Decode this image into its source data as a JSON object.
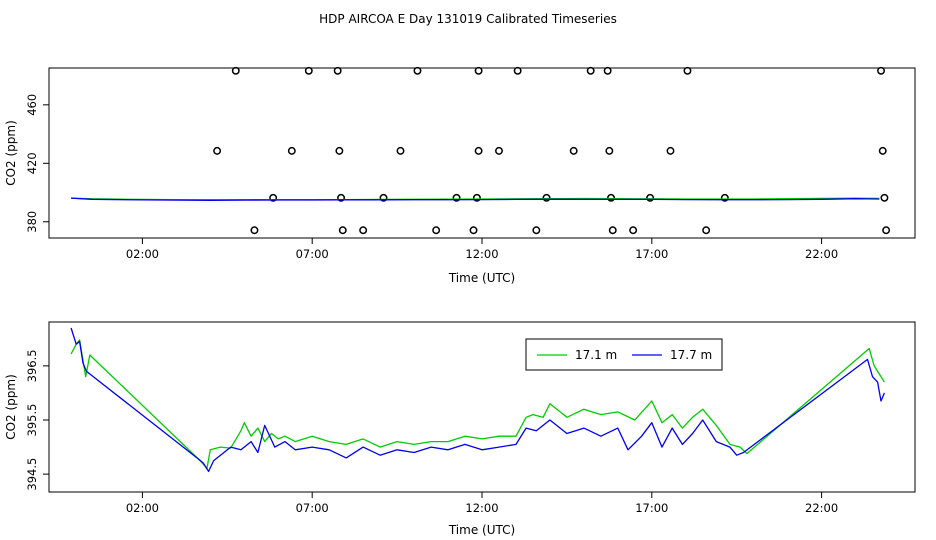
{
  "title": "HDP AIRCOA E  Day 131019  Calibrated Timeseries",
  "chart_data": [
    {
      "type": "line",
      "xlabel": "Time (UTC)",
      "ylabel": "CO2 (ppm)",
      "xticks": [
        "02:00",
        "07:00",
        "12:00",
        "17:00",
        "22:00"
      ],
      "yticks": [
        "380",
        "420",
        "460"
      ],
      "xlim": [
        -0.75,
        24.75
      ],
      "ylim": [
        368.9,
        485.2
      ],
      "series": [
        {
          "color": "#00cc00",
          "points": [
            [
              -0.1,
              396.1
            ],
            [
              0.5,
              395.7
            ],
            [
              1.5,
              395.4
            ],
            [
              3,
              395.1
            ],
            [
              4,
              395.0
            ],
            [
              5,
              395.1
            ],
            [
              6,
              395.2
            ],
            [
              7,
              395.2
            ],
            [
              8,
              395.2
            ],
            [
              9,
              395.3
            ],
            [
              10,
              395.4
            ],
            [
              11,
              395.5
            ],
            [
              12,
              395.6
            ],
            [
              13,
              395.7
            ],
            [
              14,
              395.8
            ],
            [
              15,
              395.9
            ],
            [
              16,
              395.8
            ],
            [
              17,
              395.7
            ],
            [
              18,
              395.6
            ],
            [
              19,
              395.6
            ],
            [
              20,
              395.6
            ],
            [
              21,
              395.8
            ],
            [
              22,
              396.0
            ],
            [
              23,
              396.2
            ],
            [
              23.7,
              396.0
            ]
          ]
        },
        {
          "color": "#0000ee",
          "points": [
            [
              -0.1,
              396.2
            ],
            [
              0.5,
              395.4
            ],
            [
              1.5,
              395.1
            ],
            [
              3,
              394.8
            ],
            [
              4,
              394.7
            ],
            [
              5,
              394.8
            ],
            [
              6,
              394.9
            ],
            [
              7,
              394.9
            ],
            [
              8,
              395.0
            ],
            [
              9,
              395.0
            ],
            [
              10,
              395.1
            ],
            [
              11,
              395.1
            ],
            [
              12,
              395.2
            ],
            [
              13,
              395.3
            ],
            [
              14,
              395.4
            ],
            [
              15,
              395.4
            ],
            [
              16,
              395.3
            ],
            [
              17,
              395.3
            ],
            [
              18,
              395.2
            ],
            [
              19,
              395.1
            ],
            [
              20,
              395.1
            ],
            [
              21,
              395.2
            ],
            [
              22,
              395.4
            ],
            [
              23,
              395.8
            ],
            [
              23.7,
              395.6
            ]
          ]
        }
      ],
      "circles": [
        [
          4.75,
          483.3
        ],
        [
          6.9,
          483.3
        ],
        [
          7.75,
          483.3
        ],
        [
          10.1,
          483.3
        ],
        [
          11.9,
          483.3
        ],
        [
          13.05,
          483.3
        ],
        [
          15.2,
          483.3
        ],
        [
          15.7,
          483.3
        ],
        [
          18.05,
          483.3
        ],
        [
          23.75,
          483.3
        ],
        [
          4.2,
          428.5
        ],
        [
          6.4,
          428.5
        ],
        [
          7.8,
          428.5
        ],
        [
          9.6,
          428.5
        ],
        [
          11.9,
          428.5
        ],
        [
          12.5,
          428.5
        ],
        [
          14.7,
          428.5
        ],
        [
          15.75,
          428.5
        ],
        [
          17.55,
          428.5
        ],
        [
          23.8,
          428.5
        ],
        [
          5.85,
          396.4
        ],
        [
          7.85,
          396.4
        ],
        [
          9.1,
          396.4
        ],
        [
          11.25,
          396.4
        ],
        [
          11.85,
          396.4
        ],
        [
          13.9,
          396.4
        ],
        [
          15.8,
          396.4
        ],
        [
          16.95,
          396.4
        ],
        [
          19.15,
          396.4
        ],
        [
          23.85,
          396.4
        ],
        [
          5.3,
          374.2
        ],
        [
          7.9,
          374.2
        ],
        [
          8.5,
          374.2
        ],
        [
          10.65,
          374.2
        ],
        [
          11.75,
          374.2
        ],
        [
          13.6,
          374.2
        ],
        [
          15.85,
          374.2
        ],
        [
          16.45,
          374.2
        ],
        [
          18.6,
          374.2
        ],
        [
          23.9,
          374.2
        ]
      ]
    },
    {
      "type": "line",
      "xlabel": "Time (UTC)",
      "ylabel": "CO2 (ppm)",
      "xticks": [
        "02:00",
        "07:00",
        "12:00",
        "17:00",
        "22:00"
      ],
      "yticks": [
        "394.5",
        "395.5",
        "396.5"
      ],
      "xlim": [
        -0.75,
        24.75
      ],
      "ylim": [
        394.17,
        397.31
      ],
      "series": [
        {
          "name": "17.1 m",
          "color": "#00cc00",
          "points": [
            [
              -0.1,
              396.72
            ],
            [
              0.05,
              396.9
            ],
            [
              0.15,
              396.98
            ],
            [
              0.25,
              396.6
            ],
            [
              0.33,
              396.3
            ],
            [
              0.45,
              396.7
            ],
            [
              3.7,
              394.75
            ],
            [
              3.8,
              394.68
            ],
            [
              3.9,
              394.6
            ],
            [
              4.0,
              394.95
            ],
            [
              4.3,
              395.0
            ],
            [
              4.6,
              394.98
            ],
            [
              4.9,
              395.3
            ],
            [
              5.0,
              395.45
            ],
            [
              5.2,
              395.2
            ],
            [
              5.4,
              395.35
            ],
            [
              5.6,
              395.1
            ],
            [
              5.8,
              395.25
            ],
            [
              6.0,
              395.15
            ],
            [
              6.2,
              395.2
            ],
            [
              6.5,
              395.1
            ],
            [
              7.0,
              395.2
            ],
            [
              7.5,
              395.1
            ],
            [
              8.0,
              395.05
            ],
            [
              8.5,
              395.15
            ],
            [
              9.0,
              395.0
            ],
            [
              9.5,
              395.1
            ],
            [
              10.0,
              395.05
            ],
            [
              10.5,
              395.1
            ],
            [
              11.0,
              395.1
            ],
            [
              11.5,
              395.2
            ],
            [
              12.0,
              395.15
            ],
            [
              12.5,
              395.2
            ],
            [
              13.0,
              395.2
            ],
            [
              13.3,
              395.55
            ],
            [
              13.5,
              395.6
            ],
            [
              13.8,
              395.55
            ],
            [
              14.0,
              395.8
            ],
            [
              14.5,
              395.55
            ],
            [
              15.0,
              395.7
            ],
            [
              15.5,
              395.6
            ],
            [
              16.0,
              395.65
            ],
            [
              16.5,
              395.5
            ],
            [
              17.0,
              395.85
            ],
            [
              17.3,
              395.45
            ],
            [
              17.6,
              395.6
            ],
            [
              17.9,
              395.35
            ],
            [
              18.2,
              395.55
            ],
            [
              18.5,
              395.7
            ],
            [
              18.9,
              395.4
            ],
            [
              19.3,
              395.05
            ],
            [
              19.6,
              395.0
            ],
            [
              19.8,
              394.88
            ],
            [
              23.4,
              396.82
            ],
            [
              23.55,
              396.5
            ],
            [
              23.7,
              396.35
            ],
            [
              23.85,
              396.2
            ]
          ]
        },
        {
          "name": "17.7 m",
          "color": "#0000ee",
          "points": [
            [
              -0.1,
              397.2
            ],
            [
              0.05,
              396.9
            ],
            [
              0.15,
              396.95
            ],
            [
              0.25,
              396.55
            ],
            [
              0.35,
              396.4
            ],
            [
              3.65,
              394.78
            ],
            [
              3.8,
              394.7
            ],
            [
              3.95,
              394.55
            ],
            [
              4.1,
              394.75
            ],
            [
              4.3,
              394.85
            ],
            [
              4.6,
              395.0
            ],
            [
              4.9,
              394.95
            ],
            [
              5.2,
              395.1
            ],
            [
              5.4,
              394.9
            ],
            [
              5.6,
              395.4
            ],
            [
              5.9,
              395.0
            ],
            [
              6.2,
              395.1
            ],
            [
              6.5,
              394.95
            ],
            [
              7.0,
              395.0
            ],
            [
              7.5,
              394.95
            ],
            [
              8.0,
              394.8
            ],
            [
              8.5,
              395.0
            ],
            [
              9.0,
              394.85
            ],
            [
              9.5,
              394.95
            ],
            [
              10.0,
              394.9
            ],
            [
              10.5,
              395.0
            ],
            [
              11.0,
              394.95
            ],
            [
              11.5,
              395.05
            ],
            [
              12.0,
              394.95
            ],
            [
              12.5,
              395.0
            ],
            [
              13.0,
              395.05
            ],
            [
              13.3,
              395.35
            ],
            [
              13.6,
              395.3
            ],
            [
              14.0,
              395.5
            ],
            [
              14.5,
              395.25
            ],
            [
              15.0,
              395.35
            ],
            [
              15.5,
              395.2
            ],
            [
              16.0,
              395.35
            ],
            [
              16.3,
              394.95
            ],
            [
              16.7,
              395.2
            ],
            [
              17.0,
              395.45
            ],
            [
              17.3,
              395.0
            ],
            [
              17.6,
              395.35
            ],
            [
              17.9,
              395.05
            ],
            [
              18.2,
              395.25
            ],
            [
              18.5,
              395.5
            ],
            [
              18.9,
              395.1
            ],
            [
              19.3,
              395.0
            ],
            [
              19.5,
              394.85
            ],
            [
              19.7,
              394.9
            ],
            [
              23.35,
              396.62
            ],
            [
              23.5,
              396.3
            ],
            [
              23.65,
              396.2
            ],
            [
              23.75,
              395.85
            ],
            [
              23.85,
              396.0
            ]
          ]
        }
      ]
    }
  ]
}
